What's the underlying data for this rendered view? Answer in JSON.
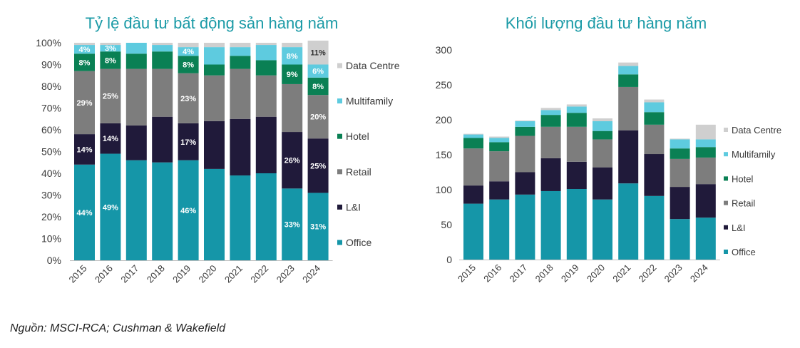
{
  "source_note": "Nguồn: MSCI-RCA; Cushman & Wakefield",
  "colors": {
    "title": "#1a9aa6",
    "Office": "#1596a8",
    "L&I": "#201a3a",
    "Retail": "#7d7d7d",
    "Hotel": "#0a8054",
    "Multifamily": "#5ecbdf",
    "Data Centre": "#cfcfcf",
    "axis_text": "#3a3a3a"
  },
  "chart_data": [
    {
      "type": "bar",
      "stacked": true,
      "title": "Tỷ lệ đầu tư bất động sản hàng năm",
      "categories": [
        "2015",
        "2016",
        "2017",
        "2018",
        "2019",
        "2020",
        "2021",
        "2022",
        "2023",
        "2024"
      ],
      "ylim": [
        0,
        100
      ],
      "yticks": [
        "0%",
        "10%",
        "20%",
        "30%",
        "40%",
        "50%",
        "60%",
        "70%",
        "80%",
        "90%",
        "100%"
      ],
      "legend_position": "right",
      "series": [
        {
          "name": "Office",
          "values": [
            44,
            49,
            46,
            45,
            46,
            42,
            39,
            40,
            33,
            31
          ],
          "labels": [
            "44%",
            "49%",
            "",
            "",
            "46%",
            "",
            "",
            "",
            "33%",
            "31%"
          ]
        },
        {
          "name": "L&I",
          "values": [
            14,
            14,
            16,
            21,
            17,
            22,
            26,
            26,
            26,
            25
          ],
          "labels": [
            "14%",
            "14%",
            "",
            "",
            "17%",
            "",
            "",
            "",
            "26%",
            "25%"
          ]
        },
        {
          "name": "Retail",
          "values": [
            29,
            25,
            26,
            22,
            23,
            21,
            23,
            19,
            22,
            20
          ],
          "labels": [
            "29%",
            "25%",
            "",
            "",
            "23%",
            "",
            "",
            "",
            "",
            "20%"
          ]
        },
        {
          "name": "Hotel",
          "values": [
            8,
            8,
            7,
            8,
            8,
            5,
            6,
            7,
            9,
            8
          ],
          "labels": [
            "8%",
            "8%",
            "",
            "",
            "8%",
            "",
            "",
            "",
            "9%",
            "8%"
          ]
        },
        {
          "name": "Multifamily",
          "values": [
            4,
            3,
            5,
            3,
            4,
            8,
            4,
            7,
            8,
            6
          ],
          "labels": [
            "4%",
            "3%",
            "",
            "",
            "4%",
            "",
            "",
            "",
            "8%",
            "6%"
          ]
        },
        {
          "name": "Data Centre",
          "values": [
            1,
            1,
            0,
            1,
            2,
            2,
            2,
            1,
            2,
            11
          ],
          "labels": [
            "",
            "",
            "",
            "",
            "",
            "",
            "",
            "",
            "",
            "11%"
          ]
        }
      ]
    },
    {
      "type": "bar",
      "stacked": true,
      "title": "Khối lượng đầu tư hàng năm",
      "categories": [
        "2015",
        "2016",
        "2017",
        "2018",
        "2019",
        "2020",
        "2021",
        "2022",
        "2023",
        "2024"
      ],
      "ylim": [
        0,
        300
      ],
      "yticks": [
        "0",
        "50",
        "100",
        "150",
        "200",
        "250",
        "300"
      ],
      "legend_position": "right",
      "series": [
        {
          "name": "Office",
          "values": [
            80,
            86,
            93,
            98,
            101,
            86,
            109,
            91,
            58,
            60
          ]
        },
        {
          "name": "L&I",
          "values": [
            26,
            26,
            32,
            47,
            39,
            46,
            76,
            60,
            46,
            48
          ]
        },
        {
          "name": "Retail",
          "values": [
            53,
            43,
            52,
            45,
            50,
            40,
            62,
            42,
            40,
            38
          ]
        },
        {
          "name": "Hotel",
          "values": [
            15,
            13,
            13,
            17,
            20,
            12,
            18,
            18,
            15,
            15
          ]
        },
        {
          "name": "Multifamily",
          "values": [
            5,
            6,
            8,
            7,
            9,
            14,
            12,
            14,
            13,
            11
          ]
        },
        {
          "name": "Data Centre",
          "values": [
            1,
            2,
            1,
            3,
            3,
            4,
            5,
            4,
            1,
            21
          ]
        }
      ]
    }
  ]
}
